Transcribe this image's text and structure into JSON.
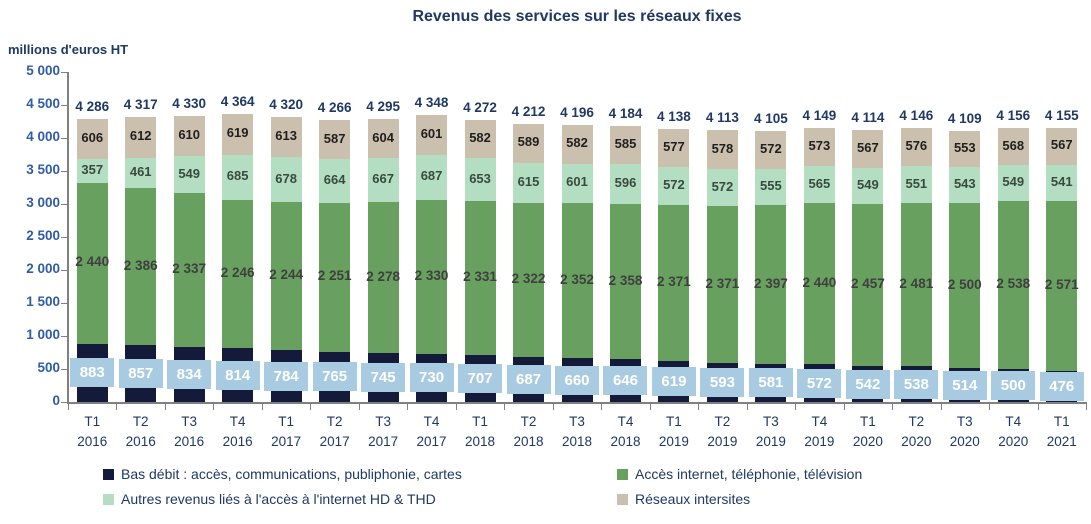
{
  "title": "Revenus des services sur les réseaux fixes",
  "y_axis_unit": "millions d'euros HT",
  "chart_data": {
    "type": "bar",
    "stacked": true,
    "grid": false,
    "legend_position": "bottom",
    "ylim": [
      0,
      5000
    ],
    "y_ticks": [
      0,
      500,
      1000,
      1500,
      2000,
      2500,
      3000,
      3500,
      4000,
      4500,
      5000
    ],
    "categories": [
      {
        "quarter": "T1",
        "year": "2016"
      },
      {
        "quarter": "T2",
        "year": "2016"
      },
      {
        "quarter": "T3",
        "year": "2016"
      },
      {
        "quarter": "T4",
        "year": "2016"
      },
      {
        "quarter": "T1",
        "year": "2017"
      },
      {
        "quarter": "T2",
        "year": "2017"
      },
      {
        "quarter": "T3",
        "year": "2017"
      },
      {
        "quarter": "T4",
        "year": "2017"
      },
      {
        "quarter": "T1",
        "year": "2018"
      },
      {
        "quarter": "T2",
        "year": "2018"
      },
      {
        "quarter": "T3",
        "year": "2018"
      },
      {
        "quarter": "T4",
        "year": "2018"
      },
      {
        "quarter": "T1",
        "year": "2019"
      },
      {
        "quarter": "T2",
        "year": "2019"
      },
      {
        "quarter": "T3",
        "year": "2019"
      },
      {
        "quarter": "T4",
        "year": "2019"
      },
      {
        "quarter": "T1",
        "year": "2020"
      },
      {
        "quarter": "T2",
        "year": "2020"
      },
      {
        "quarter": "T3",
        "year": "2020"
      },
      {
        "quarter": "T4",
        "year": "2020"
      },
      {
        "quarter": "T1",
        "year": "2021"
      }
    ],
    "series": [
      {
        "name": "Bas débit : accès, communications, publiphonie, cartes",
        "color": "#131A3A",
        "label_style": "blue-badge",
        "values": [
          883,
          857,
          834,
          814,
          784,
          765,
          745,
          730,
          707,
          687,
          660,
          646,
          619,
          593,
          581,
          572,
          542,
          538,
          514,
          500,
          476
        ]
      },
      {
        "name": "Accès internet, téléphonie, télévision",
        "color": "#68A15F",
        "label_style": "dark-text",
        "values": [
          2440,
          2386,
          2337,
          2246,
          2244,
          2251,
          2278,
          2330,
          2331,
          2322,
          2352,
          2358,
          2371,
          2371,
          2397,
          2440,
          2457,
          2481,
          2500,
          2538,
          2571
        ]
      },
      {
        "name": "Autres revenus liés à l'accès à l'internet HD & THD",
        "color": "#B3DEC2",
        "label_style": "dark-text",
        "values": [
          357,
          461,
          549,
          685,
          678,
          664,
          667,
          687,
          653,
          615,
          601,
          596,
          572,
          572,
          555,
          565,
          549,
          551,
          543,
          549,
          541
        ]
      },
      {
        "name": "Réseaux intersites",
        "color": "#CBC0AD",
        "label_style": "dark-text",
        "values": [
          606,
          612,
          610,
          619,
          613,
          587,
          604,
          601,
          582,
          589,
          582,
          585,
          577,
          578,
          572,
          573,
          567,
          576,
          553,
          568,
          567
        ]
      }
    ],
    "totals": [
      4286,
      4317,
      4330,
      4364,
      4320,
      4266,
      4295,
      4348,
      4272,
      4212,
      4196,
      4184,
      4138,
      4113,
      4105,
      4149,
      4114,
      4146,
      4109,
      4156,
      4155
    ],
    "badge_background": "#A9CBE2"
  }
}
